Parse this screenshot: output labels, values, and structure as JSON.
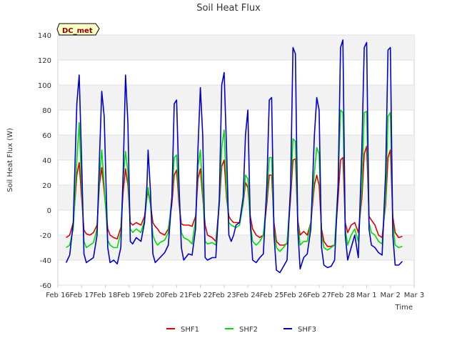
{
  "chart_data": {
    "type": "line",
    "title": "Soil Heat Flux",
    "xlabel": "Time",
    "ylabel": "Soil Heat Flux (W)",
    "site_badge": "DC_met",
    "ylim": [
      -60,
      140
    ],
    "yticks": [
      -60,
      -40,
      -20,
      0,
      20,
      40,
      60,
      80,
      100,
      120,
      140
    ],
    "xlim": [
      0,
      15
    ],
    "xticks": [
      0,
      1,
      2,
      3,
      4,
      5,
      6,
      7,
      8,
      9,
      10,
      11,
      12,
      13,
      14,
      15
    ],
    "xtick_labels": [
      "Feb 16",
      "Feb 17",
      "Feb 18",
      "Feb 19",
      "Feb 20",
      "Feb 21",
      "Feb 22",
      "Feb 23",
      "Feb 24",
      "Feb 25",
      "Feb 26",
      "Feb 27",
      "Feb 28",
      "Mar 1",
      "Mar 2",
      "Mar 3"
    ],
    "x_unit": "days since Feb 16",
    "series": [
      {
        "name": "SHF1",
        "color": "#dd0000",
        "x": [
          0.35,
          0.5,
          0.65,
          0.8,
          0.9,
          1.0,
          1.1,
          1.2,
          1.35,
          1.5,
          1.65,
          1.75,
          1.85,
          1.95,
          2.1,
          2.2,
          2.35,
          2.5,
          2.65,
          2.75,
          2.85,
          2.95,
          3.05,
          3.15,
          3.3,
          3.5,
          3.65,
          3.75,
          3.8,
          3.9,
          4.0,
          4.1,
          4.2,
          4.3,
          4.5,
          4.65,
          4.8,
          4.9,
          5.0,
          5.1,
          5.2,
          5.3,
          5.5,
          5.65,
          5.8,
          5.9,
          6.0,
          6.1,
          6.2,
          6.3,
          6.5,
          6.65,
          6.8,
          6.9,
          7.0,
          7.1,
          7.2,
          7.3,
          7.4,
          7.5,
          7.65,
          7.8,
          7.9,
          8.0,
          8.1,
          8.2,
          8.35,
          8.5,
          8.65,
          8.8,
          8.9,
          9.0,
          9.1,
          9.2,
          9.35,
          9.5,
          9.65,
          9.8,
          9.9,
          10.0,
          10.1,
          10.2,
          10.35,
          10.5,
          10.65,
          10.8,
          10.9,
          11.0,
          11.1,
          11.2,
          11.35,
          11.5,
          11.65,
          11.8,
          11.9,
          12.0,
          12.1,
          12.2,
          12.35,
          12.5,
          12.65,
          12.8,
          12.9,
          13.0,
          13.1,
          13.2,
          13.35,
          13.5,
          13.65,
          13.8,
          13.9,
          14.0,
          14.1,
          14.2,
          14.35,
          14.5
        ],
        "y": [
          -22,
          -20,
          -10,
          28,
          38,
          10,
          -16,
          -19,
          -20,
          -18,
          -12,
          20,
          34,
          15,
          -15,
          -20,
          -22,
          -23,
          -14,
          15,
          33,
          20,
          -10,
          -12,
          -10,
          -12,
          -5,
          10,
          15,
          5,
          -10,
          -13,
          -15,
          -18,
          -20,
          -15,
          5,
          28,
          32,
          5,
          -11,
          -12,
          -12,
          -13,
          -5,
          25,
          33,
          10,
          -12,
          -20,
          -22,
          -25,
          5,
          35,
          40,
          10,
          -5,
          -8,
          -10,
          -10,
          -10,
          5,
          22,
          18,
          -5,
          -15,
          -20,
          -22,
          -20,
          5,
          28,
          28,
          -10,
          -25,
          -28,
          -28,
          -27,
          10,
          40,
          41,
          -8,
          -20,
          -17,
          -20,
          -10,
          20,
          28,
          20,
          -15,
          -25,
          -29,
          -29,
          -28,
          10,
          40,
          42,
          -10,
          -18,
          -12,
          -10,
          -18,
          10,
          45,
          51,
          -5,
          -8,
          -12,
          -20,
          -22,
          5,
          42,
          48,
          -5,
          -18,
          -22,
          -21
        ]
      },
      {
        "name": "SHF2",
        "color": "#00dd00",
        "x": [
          0.35,
          0.5,
          0.65,
          0.8,
          0.9,
          1.0,
          1.1,
          1.2,
          1.35,
          1.5,
          1.65,
          1.75,
          1.85,
          1.95,
          2.1,
          2.2,
          2.35,
          2.5,
          2.65,
          2.75,
          2.85,
          2.95,
          3.05,
          3.15,
          3.3,
          3.5,
          3.65,
          3.75,
          3.8,
          3.9,
          4.0,
          4.1,
          4.2,
          4.3,
          4.5,
          4.65,
          4.8,
          4.9,
          5.0,
          5.1,
          5.2,
          5.3,
          5.5,
          5.65,
          5.8,
          5.9,
          6.0,
          6.1,
          6.2,
          6.3,
          6.5,
          6.65,
          6.8,
          6.9,
          7.0,
          7.1,
          7.2,
          7.3,
          7.4,
          7.5,
          7.65,
          7.8,
          7.9,
          8.0,
          8.1,
          8.2,
          8.35,
          8.5,
          8.65,
          8.8,
          8.9,
          9.0,
          9.1,
          9.2,
          9.35,
          9.5,
          9.65,
          9.8,
          9.9,
          10.0,
          10.1,
          10.2,
          10.35,
          10.5,
          10.65,
          10.8,
          10.9,
          11.0,
          11.1,
          11.2,
          11.35,
          11.5,
          11.65,
          11.8,
          11.9,
          12.0,
          12.1,
          12.2,
          12.35,
          12.5,
          12.65,
          12.8,
          12.9,
          13.0,
          13.1,
          13.2,
          13.35,
          13.5,
          13.65,
          13.8,
          13.9,
          14.0,
          14.1,
          14.2,
          14.35,
          14.5
        ],
        "y": [
          -30,
          -28,
          -15,
          40,
          70,
          20,
          -25,
          -30,
          -28,
          -26,
          -15,
          25,
          48,
          20,
          -24,
          -28,
          -30,
          -30,
          -18,
          25,
          47,
          30,
          -15,
          -18,
          -15,
          -18,
          -8,
          10,
          18,
          5,
          -20,
          -25,
          -28,
          -26,
          -24,
          -18,
          10,
          42,
          44,
          10,
          -18,
          -22,
          -24,
          -27,
          -8,
          35,
          48,
          15,
          -25,
          -27,
          -26,
          -28,
          5,
          50,
          64,
          15,
          -10,
          -12,
          -13,
          -14,
          -12,
          5,
          28,
          25,
          -10,
          -25,
          -28,
          -25,
          -20,
          10,
          42,
          42,
          -15,
          -30,
          -33,
          -30,
          -26,
          15,
          57,
          55,
          -10,
          -28,
          -25,
          -25,
          -10,
          30,
          50,
          45,
          -20,
          -30,
          -32,
          -30,
          -28,
          20,
          80,
          78,
          -15,
          -28,
          -20,
          -15,
          -25,
          20,
          78,
          79,
          -10,
          -18,
          -20,
          -25,
          -27,
          10,
          75,
          78,
          -10,
          -28,
          -30,
          -29
        ]
      },
      {
        "name": "SHF3",
        "color": "#0000cc",
        "x": [
          0.35,
          0.5,
          0.65,
          0.8,
          0.9,
          1.0,
          1.1,
          1.2,
          1.35,
          1.5,
          1.65,
          1.75,
          1.85,
          1.95,
          2.1,
          2.2,
          2.35,
          2.5,
          2.65,
          2.75,
          2.85,
          2.95,
          3.05,
          3.15,
          3.3,
          3.5,
          3.65,
          3.75,
          3.8,
          3.9,
          4.0,
          4.1,
          4.2,
          4.3,
          4.5,
          4.65,
          4.8,
          4.9,
          5.0,
          5.1,
          5.2,
          5.3,
          5.5,
          5.65,
          5.8,
          5.9,
          6.0,
          6.1,
          6.2,
          6.3,
          6.5,
          6.65,
          6.8,
          6.9,
          7.0,
          7.1,
          7.2,
          7.3,
          7.4,
          7.5,
          7.65,
          7.8,
          7.9,
          8.0,
          8.1,
          8.2,
          8.35,
          8.5,
          8.65,
          8.8,
          8.9,
          9.0,
          9.1,
          9.2,
          9.35,
          9.5,
          9.65,
          9.8,
          9.9,
          10.0,
          10.1,
          10.2,
          10.35,
          10.5,
          10.65,
          10.8,
          10.9,
          11.0,
          11.1,
          11.2,
          11.35,
          11.5,
          11.65,
          11.8,
          11.9,
          12.0,
          12.1,
          12.2,
          12.35,
          12.5,
          12.65,
          12.8,
          12.9,
          13.0,
          13.1,
          13.2,
          13.35,
          13.5,
          13.65,
          13.8,
          13.9,
          14.0,
          14.1,
          14.2,
          14.35,
          14.5
        ],
        "y": [
          -42,
          -36,
          -10,
          85,
          108,
          40,
          -35,
          -42,
          -40,
          -38,
          -20,
          40,
          95,
          75,
          -30,
          -42,
          -40,
          -43,
          -30,
          30,
          108,
          70,
          -25,
          -27,
          -22,
          -25,
          -10,
          20,
          48,
          15,
          -35,
          -42,
          -40,
          -38,
          -34,
          -28,
          10,
          85,
          88,
          20,
          -30,
          -40,
          -35,
          -36,
          -15,
          50,
          98,
          60,
          -38,
          -40,
          -38,
          -38,
          10,
          100,
          110,
          50,
          -20,
          -25,
          -20,
          -12,
          -10,
          10,
          60,
          80,
          -10,
          -40,
          -42,
          -38,
          -35,
          20,
          88,
          90,
          -20,
          -48,
          -50,
          -45,
          -40,
          20,
          130,
          125,
          -15,
          -47,
          -38,
          -35,
          -15,
          60,
          90,
          80,
          -30,
          -44,
          -46,
          -45,
          -40,
          20,
          130,
          136,
          -20,
          -40,
          -30,
          -20,
          -38,
          50,
          130,
          134,
          -15,
          -28,
          -30,
          -34,
          -36,
          30,
          128,
          130,
          -20,
          -44,
          -44,
          -41
        ]
      }
    ],
    "legend_position": "bottom"
  }
}
